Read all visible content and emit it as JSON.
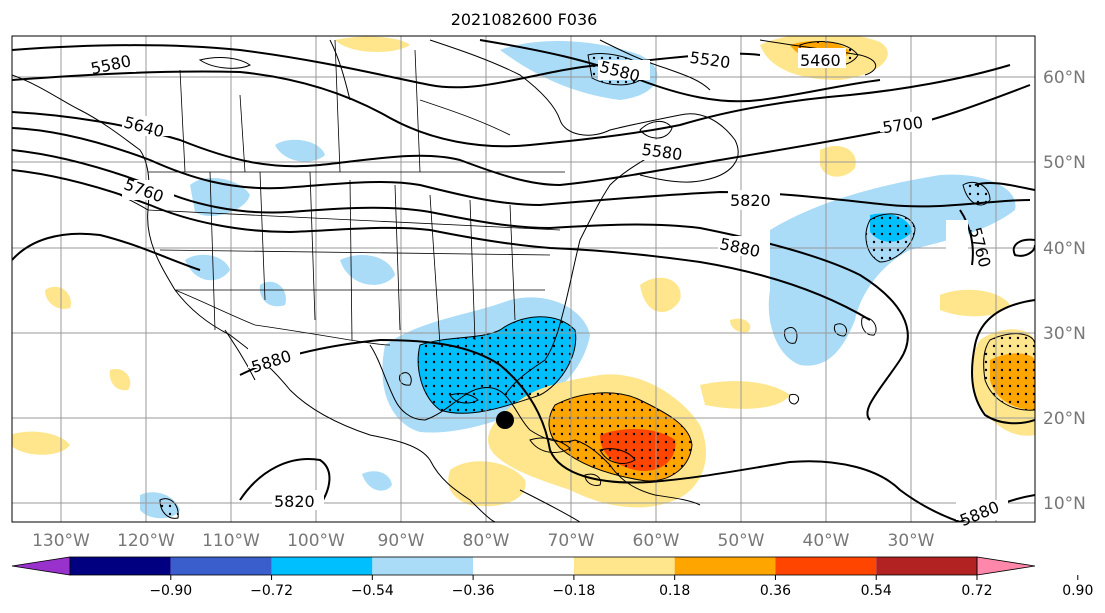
{
  "title": "2021082600 F036",
  "longitude_labels": [
    "130°W",
    "120°W",
    "110°W",
    "100°W",
    "90°W",
    "80°W",
    "70°W",
    "60°W",
    "50°W",
    "40°W",
    "30°W"
  ],
  "latitude_labels": [
    "60°N",
    "50°N",
    "40°N",
    "30°N",
    "20°N",
    "10°N"
  ],
  "contour_labels": [
    "5580",
    "5520",
    "5460",
    "5640",
    "5700",
    "5580",
    "5760",
    "5820",
    "5880",
    "5760",
    "5880",
    "5820",
    "5880"
  ],
  "colorbar": {
    "colors": [
      "#9932cc",
      "#000080",
      "#3a5fcd",
      "#00bfff",
      "#aadcf8",
      "#ffffff",
      "#ffe68c",
      "#ffa500",
      "#ff4500",
      "#b22222",
      "#ff88aa"
    ],
    "ticks": [
      "−0.90",
      "−0.72",
      "−0.54",
      "−0.36",
      "−0.18",
      "0.18",
      "0.36",
      "0.54",
      "0.72",
      "0.90"
    ]
  },
  "colors": {
    "negative_light": "#aadcf8",
    "negative_strong": "#00bfff",
    "positive_light": "#ffe68c",
    "positive_orange": "#ffa500",
    "positive_red": "#ff4500"
  }
}
